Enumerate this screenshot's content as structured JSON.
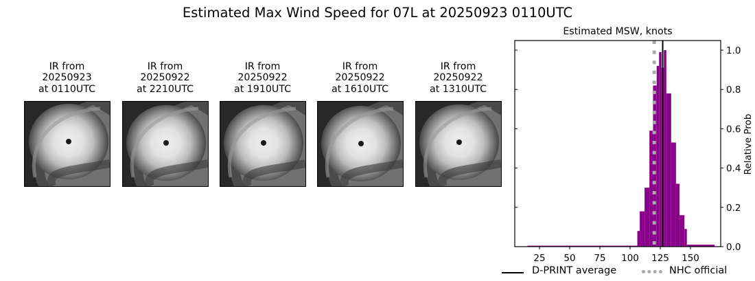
{
  "figure": {
    "suptitle": "Estimated Max Wind Speed for 07L at 20250923 0110UTC"
  },
  "ir_panels": [
    {
      "line1": "IR from",
      "line2": "20250923",
      "line3": "at 0110UTC",
      "eye": [
        64,
        58
      ]
    },
    {
      "line1": "IR from",
      "line2": "20250922",
      "line3": "at 2210UTC",
      "eye": [
        63,
        60
      ]
    },
    {
      "line1": "IR from",
      "line2": "20250922",
      "line3": "at 1910UTC",
      "eye": [
        63,
        60
      ]
    },
    {
      "line1": "IR from",
      "line2": "20250922",
      "line3": "at 1610UTC",
      "eye": [
        63,
        61
      ]
    },
    {
      "line1": "IR from",
      "line2": "20250922",
      "line3": "at 1310UTC",
      "eye": [
        63,
        59
      ]
    }
  ],
  "chart_data": {
    "type": "bar",
    "title": "Estimated MSW, knots",
    "xlabel": "",
    "ylabel": "Relative Prob",
    "xlim": [
      5,
      175
    ],
    "ylim": [
      0,
      1.05
    ],
    "xticks": [
      25,
      50,
      75,
      100,
      125,
      150
    ],
    "yticks": [
      0.0,
      0.2,
      0.4,
      0.6,
      0.8,
      1.0
    ],
    "ytick_labels": [
      "0.0",
      "0.2",
      "0.4",
      "0.6",
      "0.8",
      "1.0"
    ],
    "yaxis_side": "right",
    "grid": false,
    "bar_color": "#8b008b",
    "histogram_bins": [
      {
        "x0": 15,
        "x1": 106,
        "value": 0.005
      },
      {
        "x0": 106,
        "x1": 108,
        "value": 0.08
      },
      {
        "x0": 108,
        "x1": 112,
        "value": 0.18
      },
      {
        "x0": 112,
        "x1": 116,
        "value": 0.3
      },
      {
        "x0": 116,
        "x1": 119,
        "value": 0.59
      },
      {
        "x0": 119,
        "x1": 122,
        "value": 0.82
      },
      {
        "x0": 122,
        "x1": 124,
        "value": 0.92
      },
      {
        "x0": 124,
        "x1": 126,
        "value": 0.99
      },
      {
        "x0": 126,
        "x1": 128,
        "value": 0.91
      },
      {
        "x0": 128,
        "x1": 130,
        "value": 1.0
      },
      {
        "x0": 130,
        "x1": 134,
        "value": 0.78
      },
      {
        "x0": 134,
        "x1": 138,
        "value": 0.53
      },
      {
        "x0": 138,
        "x1": 141,
        "value": 0.32
      },
      {
        "x0": 141,
        "x1": 145,
        "value": 0.16
      },
      {
        "x0": 145,
        "x1": 147,
        "value": 0.09
      },
      {
        "x0": 147,
        "x1": 170,
        "value": 0.01
      }
    ],
    "reference_lines": [
      {
        "name": "D-PRINT average",
        "x": 127,
        "color": "#000000",
        "style": "solid"
      },
      {
        "name": "NHC official",
        "x": 120,
        "color": "#aaaaaa",
        "style": "dotted"
      }
    ],
    "legend": {
      "position": "below",
      "entries": [
        "D-PRINT average",
        "NHC official"
      ]
    }
  }
}
